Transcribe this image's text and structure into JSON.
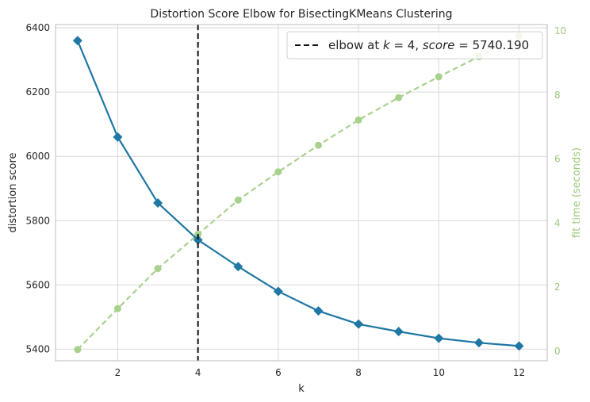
{
  "chart_data": {
    "type": "line",
    "title": "Distortion Score Elbow for BisectingKMeans Clustering",
    "xlabel": "k",
    "ylabel": "distortion score",
    "y2label": "fit time (seconds)",
    "x": [
      1,
      2,
      3,
      4,
      5,
      6,
      7,
      8,
      9,
      10,
      11,
      12
    ],
    "xticks": [
      2,
      4,
      6,
      8,
      10,
      12
    ],
    "yticks": [
      5400,
      5600,
      5800,
      6000,
      6200,
      6400
    ],
    "y2ticks": [
      0,
      2,
      4,
      6,
      8,
      10
    ],
    "xlim": [
      0.45,
      12.7
    ],
    "ylim": [
      5364,
      6410
    ],
    "y2lim": [
      -0.3,
      10.2
    ],
    "grid": true,
    "legend_position": "top-right",
    "series": [
      {
        "name": "distortion score",
        "axis": "left",
        "color": "#1f77a4",
        "marker": "diamond",
        "values": [
          6360,
          6060,
          5855,
          5740,
          5657,
          5580,
          5519,
          5478,
          5455,
          5434,
          5420,
          5410
        ]
      },
      {
        "name": "fit time",
        "axis": "right",
        "color": "#a9d18e",
        "marker": "circle",
        "dashed": true,
        "values": [
          0.05,
          1.33,
          2.58,
          3.65,
          4.72,
          5.6,
          6.43,
          7.22,
          7.92,
          8.57,
          9.2,
          9.85
        ]
      }
    ],
    "elbow": {
      "k": 4,
      "label_prefix": "elbow at ",
      "label_k": "k",
      "label_eq1": " = 4, ",
      "label_score": "score",
      "label_eq2": " = 5740.190"
    }
  }
}
